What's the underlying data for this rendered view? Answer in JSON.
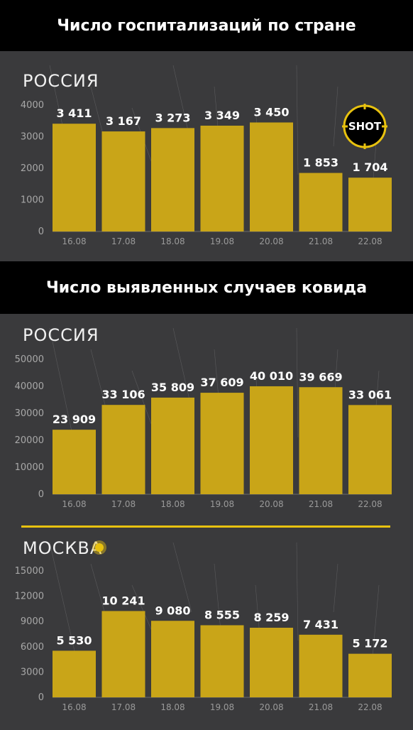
{
  "headers": {
    "hospitalizations": "Число госпитализаций по стране",
    "cases": "Число выявленных случаев ковида"
  },
  "logo_text": "SHOT",
  "colors": {
    "bar": "#c9a518",
    "accent": "#e8c20f",
    "background": "#3a3a3c",
    "header": "#000000"
  },
  "chart_data": [
    {
      "type": "bar",
      "title": "Число госпитализаций по стране",
      "region": "РОССИЯ",
      "categories": [
        "16.08",
        "17.08",
        "18.08",
        "19.08",
        "20.08",
        "21.08",
        "22.08"
      ],
      "values": [
        3411,
        3167,
        3273,
        3349,
        3450,
        1853,
        1704
      ],
      "labels": [
        "3 411",
        "3 167",
        "3 273",
        "3 349",
        "3 450",
        "1 853",
        "1 704"
      ],
      "ylim": [
        0,
        4000
      ],
      "yticks": [
        0,
        1000,
        2000,
        3000,
        4000
      ]
    },
    {
      "type": "bar",
      "title": "Число выявленных случаев ковида",
      "region": "РОССИЯ",
      "categories": [
        "16.08",
        "17.08",
        "18.08",
        "19.08",
        "20.08",
        "21.08",
        "22.08"
      ],
      "values": [
        23909,
        33106,
        35809,
        37609,
        40010,
        39669,
        33061
      ],
      "labels": [
        "23 909",
        "33 106",
        "35 809",
        "37 609",
        "40 010",
        "39 669",
        "33 061"
      ],
      "ylim": [
        0,
        50000
      ],
      "yticks": [
        0,
        10000,
        20000,
        30000,
        40000,
        50000
      ]
    },
    {
      "type": "bar",
      "title": "Число выявленных случаев ковида",
      "region": "МОСКВА",
      "categories": [
        "16.08",
        "17.08",
        "18.08",
        "19.08",
        "20.08",
        "21.08",
        "22.08"
      ],
      "values": [
        5530,
        10241,
        9080,
        8555,
        8259,
        7431,
        5172
      ],
      "labels": [
        "5 530",
        "10 241",
        "9 080",
        "8 555",
        "8 259",
        "7 431",
        "5 172"
      ],
      "ylim": [
        0,
        15000
      ],
      "yticks": [
        0,
        3000,
        6000,
        9000,
        12000,
        15000
      ]
    }
  ]
}
